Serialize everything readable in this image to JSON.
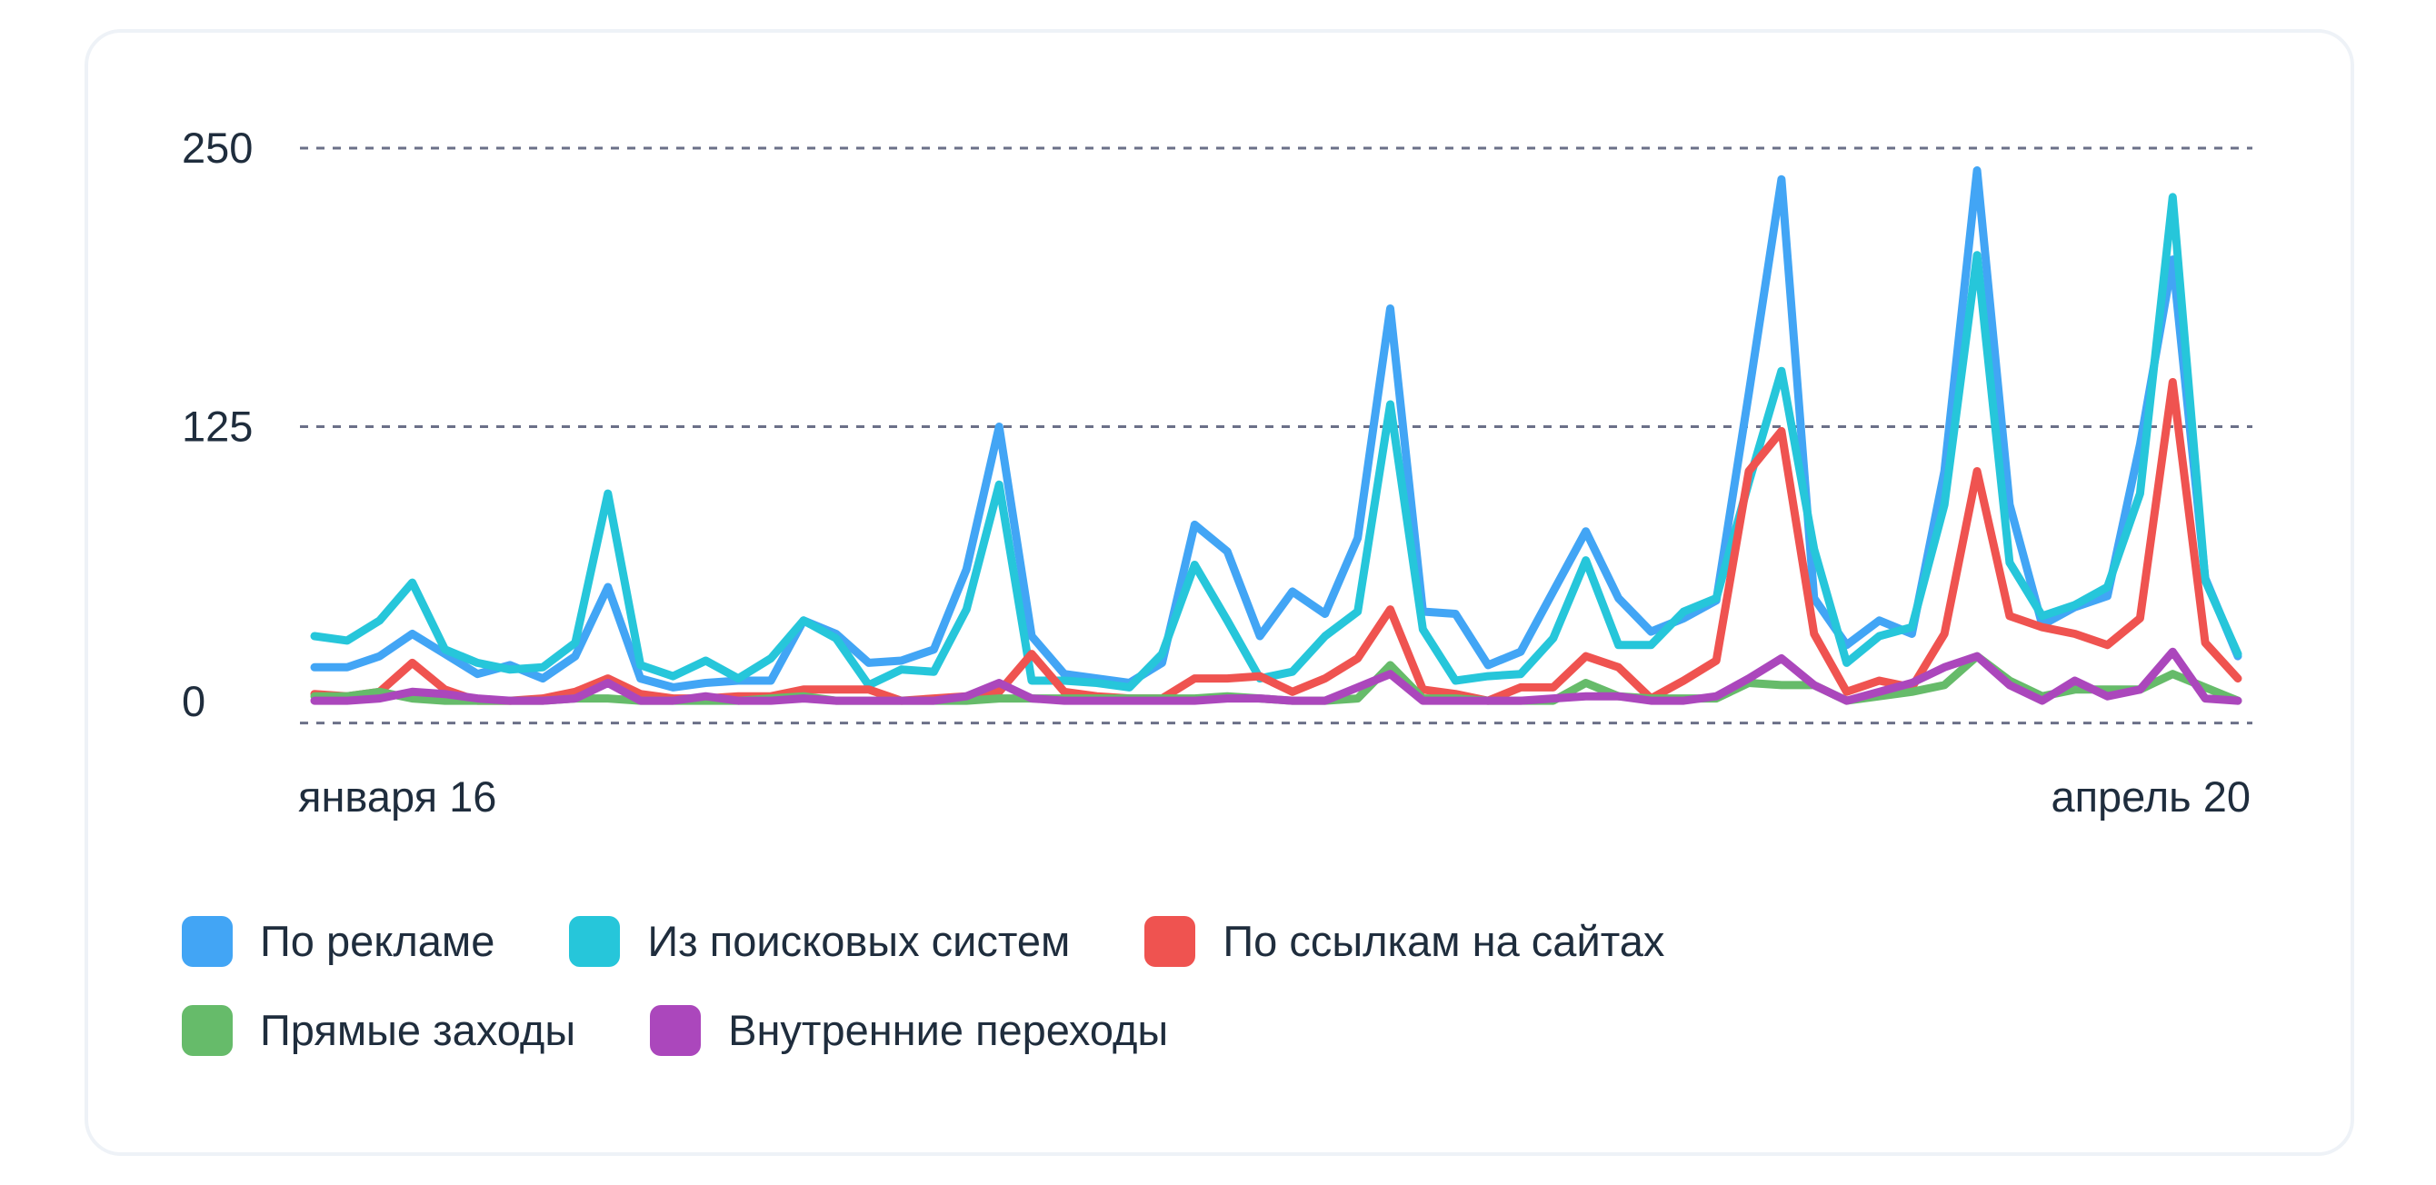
{
  "chart_data": {
    "type": "line",
    "x_first_label": "января 16",
    "x_last_label": "апрель 20",
    "yticks": [
      0,
      125,
      250
    ],
    "ylim": [
      -8,
      250
    ],
    "grid": true,
    "legend_position": "bottom-left",
    "series": [
      {
        "name": "По рекламе",
        "color": "#42A5F5",
        "values": [
          17,
          17,
          22,
          32,
          23,
          14,
          18,
          12,
          22,
          53,
          12,
          8,
          10,
          11,
          11,
          38,
          32,
          19,
          20,
          25,
          61,
          125,
          31,
          14,
          12,
          10,
          19,
          81,
          69,
          31,
          51,
          41,
          75,
          178,
          42,
          41,
          18,
          24,
          51,
          78,
          48,
          33,
          39,
          47,
          140,
          236,
          48,
          27,
          38,
          32,
          105,
          240,
          90,
          36,
          44,
          49,
          117,
          200,
          57,
          22
        ]
      },
      {
        "name": "Из поисковых систем",
        "color": "#26C6DA",
        "values": [
          31,
          29,
          38,
          55,
          25,
          19,
          16,
          17,
          28,
          95,
          18,
          13,
          20,
          12,
          21,
          38,
          30,
          9,
          16,
          15,
          43,
          99,
          11,
          11,
          10,
          8,
          23,
          63,
          38,
          12,
          15,
          31,
          42,
          135,
          34,
          11,
          13,
          14,
          30,
          65,
          27,
          27,
          42,
          48,
          100,
          150,
          70,
          19,
          31,
          35,
          90,
          202,
          64,
          40,
          45,
          53,
          95,
          228,
          56,
          23
        ]
      },
      {
        "name": "По ссылкам на сайтах",
        "color": "#EF5350",
        "values": [
          5,
          4,
          6,
          19,
          7,
          2,
          2,
          3,
          6,
          12,
          5,
          3,
          3,
          4,
          4,
          7,
          7,
          7,
          2,
          3,
          4,
          6,
          23,
          6,
          4,
          3,
          3,
          12,
          12,
          13,
          6,
          12,
          21,
          43,
          7,
          5,
          2,
          8,
          8,
          22,
          17,
          3,
          11,
          20,
          105,
          123,
          32,
          6,
          11,
          8,
          32,
          105,
          40,
          35,
          32,
          27,
          39,
          145,
          28,
          12
        ]
      },
      {
        "name": "Прямые заходы",
        "color": "#66BB6A",
        "values": [
          4,
          4,
          6,
          3,
          2,
          2,
          2,
          2,
          3,
          3,
          2,
          2,
          2,
          2,
          3,
          4,
          2,
          2,
          2,
          2,
          2,
          3,
          3,
          3,
          3,
          3,
          3,
          3,
          4,
          3,
          2,
          2,
          3,
          18,
          3,
          3,
          2,
          2,
          2,
          10,
          4,
          3,
          3,
          3,
          10,
          9,
          9,
          2,
          4,
          6,
          9,
          22,
          11,
          4,
          7,
          7,
          7,
          14,
          8,
          2
        ]
      },
      {
        "name": "Внутренние переходы",
        "color": "#AB47BC",
        "values": [
          2,
          2,
          3,
          6,
          5,
          3,
          2,
          2,
          3,
          10,
          2,
          2,
          4,
          2,
          2,
          3,
          2,
          2,
          2,
          2,
          4,
          10,
          3,
          2,
          2,
          2,
          2,
          2,
          3,
          3,
          2,
          2,
          8,
          14,
          2,
          2,
          2,
          2,
          3,
          4,
          4,
          2,
          2,
          4,
          12,
          21,
          9,
          2,
          6,
          10,
          17,
          22,
          9,
          2,
          11,
          4,
          7,
          24,
          3,
          2
        ]
      }
    ]
  }
}
